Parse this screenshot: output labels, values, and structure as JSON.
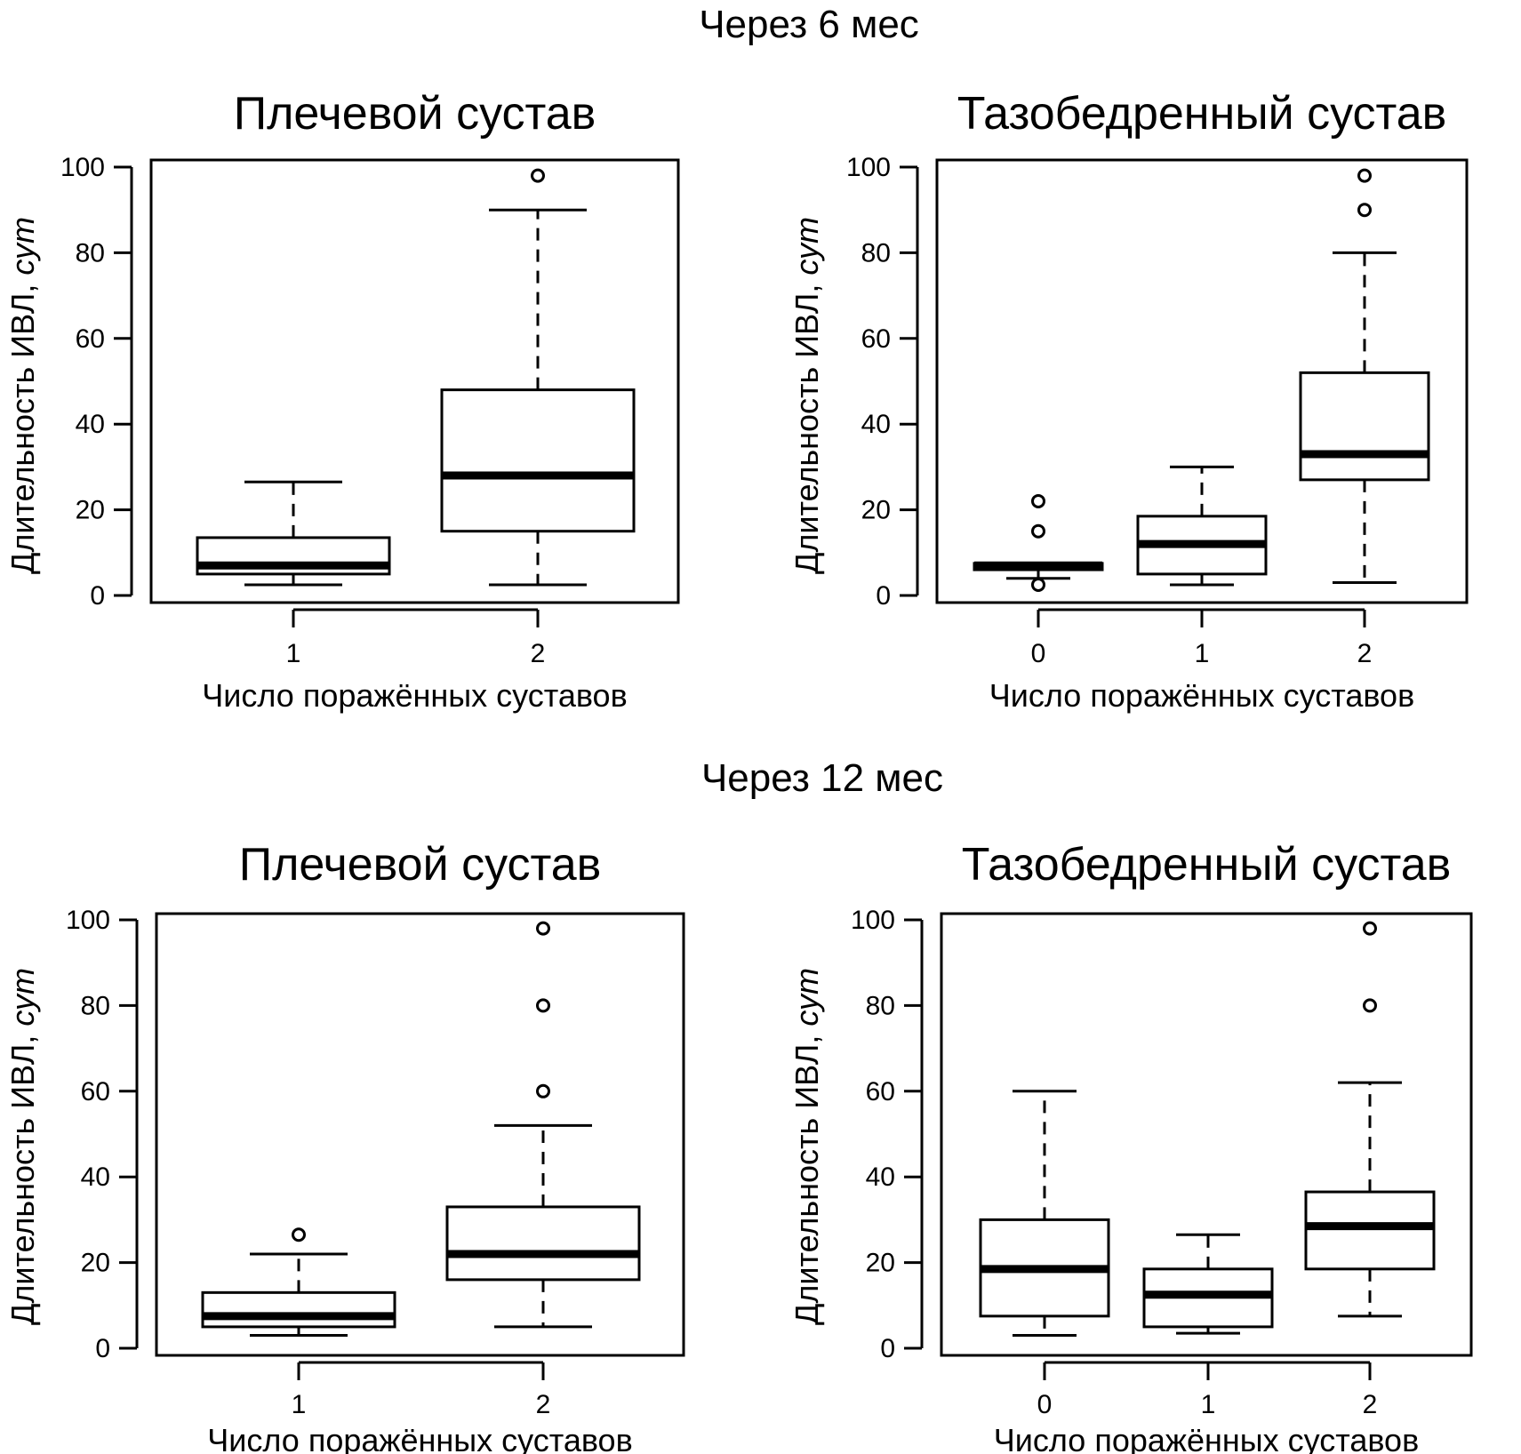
{
  "sections": [
    {
      "title": "Через 6 мес"
    },
    {
      "title": "Через 12 мес"
    }
  ],
  "chart_data": [
    {
      "type": "boxplot",
      "section": "Через 6 мес",
      "title": "Плечевой сустав",
      "xlabel": "Число поражённых суставов",
      "ylabel": "Длительность ИВЛ,",
      "ylabel_unit": "сут",
      "ylim": [
        0,
        100
      ],
      "yticks": [
        0,
        20,
        40,
        60,
        80,
        100
      ],
      "groups": [
        {
          "label": "1",
          "whisker_low": 2.5,
          "q1": 5,
          "median": 7,
          "q3": 13.5,
          "whisker_high": 26.5,
          "outliers": []
        },
        {
          "label": "2",
          "whisker_low": 2.5,
          "q1": 15,
          "median": 28,
          "q3": 48,
          "whisker_high": 90,
          "outliers": [
            98
          ]
        }
      ]
    },
    {
      "type": "boxplot",
      "section": "Через 6 мес",
      "title": "Тазобедренный сустав",
      "xlabel": "Число поражённых суставов",
      "ylabel": "Длительность ИВЛ,",
      "ylabel_unit": "сут",
      "ylim": [
        0,
        100
      ],
      "yticks": [
        0,
        20,
        40,
        60,
        80,
        100
      ],
      "groups": [
        {
          "label": "0",
          "whisker_low": 4,
          "q1": 6,
          "median": 7,
          "q3": 7.5,
          "whisker_high": 7.5,
          "outliers": [
            22,
            15,
            2.5
          ]
        },
        {
          "label": "1",
          "whisker_low": 2.5,
          "q1": 5,
          "median": 12,
          "q3": 18.5,
          "whisker_high": 30,
          "outliers": []
        },
        {
          "label": "2",
          "whisker_low": 3,
          "q1": 27,
          "median": 33,
          "q3": 52,
          "whisker_high": 80,
          "outliers": [
            98,
            90
          ]
        }
      ]
    },
    {
      "type": "boxplot",
      "section": "Через 12 мес",
      "title": "Плечевой сустав",
      "xlabel": "Число поражённых суставов",
      "ylabel": "Длительность ИВЛ,",
      "ylabel_unit": "сут",
      "ylim": [
        0,
        100
      ],
      "yticks": [
        0,
        20,
        40,
        60,
        80,
        100
      ],
      "groups": [
        {
          "label": "1",
          "whisker_low": 3,
          "q1": 5,
          "median": 7.5,
          "q3": 13,
          "whisker_high": 22,
          "outliers": [
            26.5
          ]
        },
        {
          "label": "2",
          "whisker_low": 5,
          "q1": 16,
          "median": 22,
          "q3": 33,
          "whisker_high": 52,
          "outliers": [
            98,
            80,
            60
          ]
        }
      ]
    },
    {
      "type": "boxplot",
      "section": "Через 12 мес",
      "title": "Тазобедренный сустав",
      "xlabel": "Число поражённых суставов",
      "ylabel": "Длительность ИВЛ,",
      "ylabel_unit": "сут",
      "ylim": [
        0,
        100
      ],
      "yticks": [
        0,
        20,
        40,
        60,
        80,
        100
      ],
      "groups": [
        {
          "label": "0",
          "whisker_low": 3,
          "q1": 7.5,
          "median": 18.5,
          "q3": 30,
          "whisker_high": 60,
          "outliers": []
        },
        {
          "label": "1",
          "whisker_low": 3.5,
          "q1": 5,
          "median": 12.5,
          "q3": 18.5,
          "whisker_high": 26.5,
          "outliers": []
        },
        {
          "label": "2",
          "whisker_low": 7.5,
          "q1": 18.5,
          "median": 28.5,
          "q3": 36.5,
          "whisker_high": 62,
          "outliers": [
            98,
            80
          ]
        }
      ]
    }
  ]
}
